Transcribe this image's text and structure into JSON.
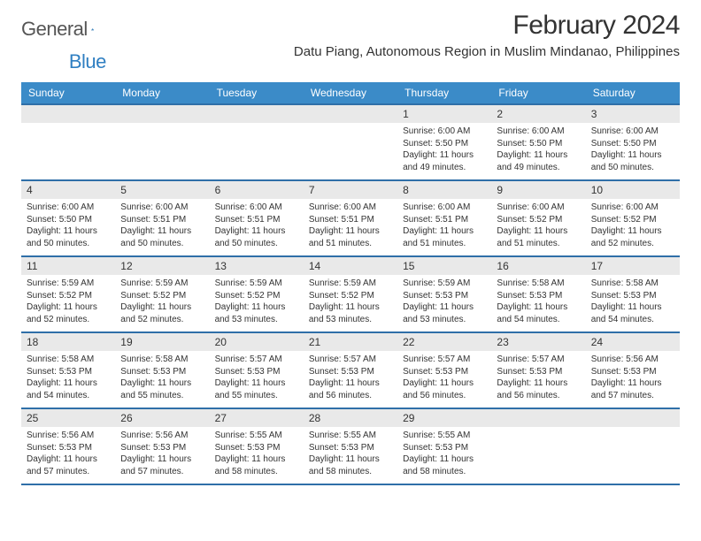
{
  "logo": {
    "general": "General",
    "blue": "Blue",
    "mark_color": "#2f6fa8"
  },
  "title": "February 2024",
  "location": "Datu Piang, Autonomous Region in Muslim Mindanao, Philippines",
  "colors": {
    "header_bg": "#3b8bc8",
    "header_text": "#ffffff",
    "daynum_bg": "#e9e9e9",
    "row_border": "#2f6fa8",
    "text": "#333333"
  },
  "weekdays": [
    "Sunday",
    "Monday",
    "Tuesday",
    "Wednesday",
    "Thursday",
    "Friday",
    "Saturday"
  ],
  "weeks": [
    [
      null,
      null,
      null,
      null,
      {
        "n": "1",
        "sr": "6:00 AM",
        "ss": "5:50 PM",
        "dl": "11 hours and 49 minutes."
      },
      {
        "n": "2",
        "sr": "6:00 AM",
        "ss": "5:50 PM",
        "dl": "11 hours and 49 minutes."
      },
      {
        "n": "3",
        "sr": "6:00 AM",
        "ss": "5:50 PM",
        "dl": "11 hours and 50 minutes."
      }
    ],
    [
      {
        "n": "4",
        "sr": "6:00 AM",
        "ss": "5:50 PM",
        "dl": "11 hours and 50 minutes."
      },
      {
        "n": "5",
        "sr": "6:00 AM",
        "ss": "5:51 PM",
        "dl": "11 hours and 50 minutes."
      },
      {
        "n": "6",
        "sr": "6:00 AM",
        "ss": "5:51 PM",
        "dl": "11 hours and 50 minutes."
      },
      {
        "n": "7",
        "sr": "6:00 AM",
        "ss": "5:51 PM",
        "dl": "11 hours and 51 minutes."
      },
      {
        "n": "8",
        "sr": "6:00 AM",
        "ss": "5:51 PM",
        "dl": "11 hours and 51 minutes."
      },
      {
        "n": "9",
        "sr": "6:00 AM",
        "ss": "5:52 PM",
        "dl": "11 hours and 51 minutes."
      },
      {
        "n": "10",
        "sr": "6:00 AM",
        "ss": "5:52 PM",
        "dl": "11 hours and 52 minutes."
      }
    ],
    [
      {
        "n": "11",
        "sr": "5:59 AM",
        "ss": "5:52 PM",
        "dl": "11 hours and 52 minutes."
      },
      {
        "n": "12",
        "sr": "5:59 AM",
        "ss": "5:52 PM",
        "dl": "11 hours and 52 minutes."
      },
      {
        "n": "13",
        "sr": "5:59 AM",
        "ss": "5:52 PM",
        "dl": "11 hours and 53 minutes."
      },
      {
        "n": "14",
        "sr": "5:59 AM",
        "ss": "5:52 PM",
        "dl": "11 hours and 53 minutes."
      },
      {
        "n": "15",
        "sr": "5:59 AM",
        "ss": "5:53 PM",
        "dl": "11 hours and 53 minutes."
      },
      {
        "n": "16",
        "sr": "5:58 AM",
        "ss": "5:53 PM",
        "dl": "11 hours and 54 minutes."
      },
      {
        "n": "17",
        "sr": "5:58 AM",
        "ss": "5:53 PM",
        "dl": "11 hours and 54 minutes."
      }
    ],
    [
      {
        "n": "18",
        "sr": "5:58 AM",
        "ss": "5:53 PM",
        "dl": "11 hours and 54 minutes."
      },
      {
        "n": "19",
        "sr": "5:58 AM",
        "ss": "5:53 PM",
        "dl": "11 hours and 55 minutes."
      },
      {
        "n": "20",
        "sr": "5:57 AM",
        "ss": "5:53 PM",
        "dl": "11 hours and 55 minutes."
      },
      {
        "n": "21",
        "sr": "5:57 AM",
        "ss": "5:53 PM",
        "dl": "11 hours and 56 minutes."
      },
      {
        "n": "22",
        "sr": "5:57 AM",
        "ss": "5:53 PM",
        "dl": "11 hours and 56 minutes."
      },
      {
        "n": "23",
        "sr": "5:57 AM",
        "ss": "5:53 PM",
        "dl": "11 hours and 56 minutes."
      },
      {
        "n": "24",
        "sr": "5:56 AM",
        "ss": "5:53 PM",
        "dl": "11 hours and 57 minutes."
      }
    ],
    [
      {
        "n": "25",
        "sr": "5:56 AM",
        "ss": "5:53 PM",
        "dl": "11 hours and 57 minutes."
      },
      {
        "n": "26",
        "sr": "5:56 AM",
        "ss": "5:53 PM",
        "dl": "11 hours and 57 minutes."
      },
      {
        "n": "27",
        "sr": "5:55 AM",
        "ss": "5:53 PM",
        "dl": "11 hours and 58 minutes."
      },
      {
        "n": "28",
        "sr": "5:55 AM",
        "ss": "5:53 PM",
        "dl": "11 hours and 58 minutes."
      },
      {
        "n": "29",
        "sr": "5:55 AM",
        "ss": "5:53 PM",
        "dl": "11 hours and 58 minutes."
      },
      null,
      null
    ]
  ],
  "labels": {
    "sunrise": "Sunrise:",
    "sunset": "Sunset:",
    "daylight": "Daylight:"
  }
}
